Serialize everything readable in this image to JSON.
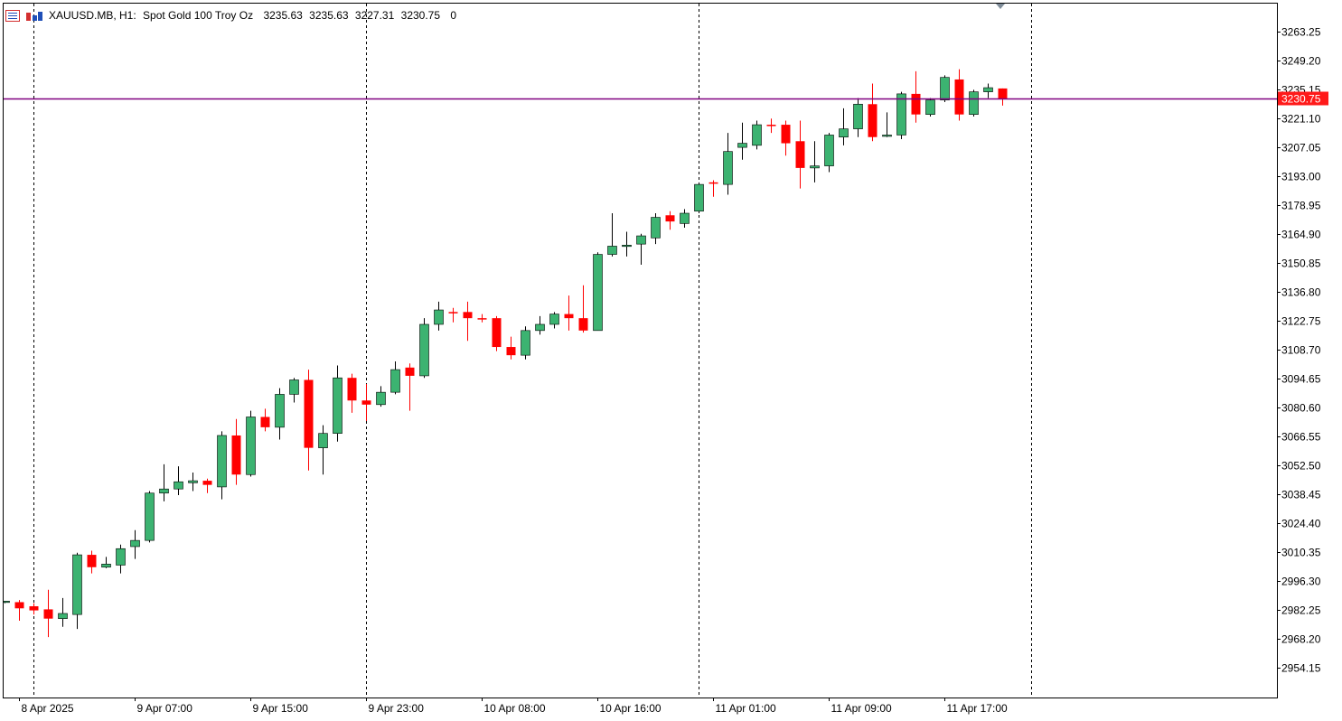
{
  "header": {
    "symbol": "XAUUSD.MB, H1:",
    "description": "Spot Gold 100 Troy Oz",
    "open": "3235.63",
    "high": "3235.63",
    "low": "3227.31",
    "close": "3230.75",
    "volume": "0"
  },
  "icons": [
    "menu-icon",
    "chart-type-icon"
  ],
  "colors": {
    "bull": "#3cb371",
    "bear": "#ff0000",
    "price_line": "#800080",
    "price_label_bg": "#ff1a1a",
    "axis": "#000000",
    "separator": "#000000"
  },
  "chart_data": {
    "type": "candlestick",
    "timeframe": "H1",
    "current_price": 3230.75,
    "current_price_label": "3230.75",
    "ylim": [
      2944,
      3280
    ],
    "y_ticks": [
      "3263.25",
      "3249.20",
      "3235.15",
      "3221.10",
      "3207.05",
      "3193.00",
      "3178.95",
      "3164.90",
      "3150.85",
      "3136.80",
      "3122.75",
      "3108.70",
      "3094.65",
      "3080.60",
      "3066.55",
      "3052.50",
      "3038.45",
      "3024.40",
      "3010.35",
      "2996.30",
      "2982.25",
      "2968.20",
      "2954.15"
    ],
    "x_labels": [
      {
        "label": "8 Apr 2025",
        "bar": 1
      },
      {
        "label": "9 Apr 07:00",
        "bar": 9
      },
      {
        "label": "9 Apr 15:00",
        "bar": 17
      },
      {
        "label": "9 Apr 23:00",
        "bar": 25
      },
      {
        "label": "10 Apr 08:00",
        "bar": 33
      },
      {
        "label": "10 Apr 16:00",
        "bar": 41
      },
      {
        "label": "11 Apr 01:00",
        "bar": 49
      },
      {
        "label": "11 Apr 09:00",
        "bar": 57
      },
      {
        "label": "11 Apr 17:00",
        "bar": 65
      }
    ],
    "day_separators": [
      2,
      25,
      48,
      71
    ],
    "candles": [
      {
        "o": 2986.2,
        "h": 2986.5,
        "l": 2985.5,
        "c": 2986.5
      },
      {
        "o": 2986.0,
        "h": 2987.0,
        "l": 2977.0,
        "c": 2983.0
      },
      {
        "o": 2984.0,
        "h": 2985.5,
        "l": 2980.0,
        "c": 2982.0
      },
      {
        "o": 2982.5,
        "h": 2992.0,
        "l": 2969.0,
        "c": 2978.0
      },
      {
        "o": 2978.0,
        "h": 2988.0,
        "l": 2974.0,
        "c": 2980.5
      },
      {
        "o": 2980.0,
        "h": 3010.0,
        "l": 2973.0,
        "c": 3009.0
      },
      {
        "o": 3009.0,
        "h": 3011.0,
        "l": 3000.0,
        "c": 3003.0
      },
      {
        "o": 3003.0,
        "h": 3008.0,
        "l": 3002.5,
        "c": 3004.5
      },
      {
        "o": 3004.0,
        "h": 3014.0,
        "l": 3000.0,
        "c": 3012.0
      },
      {
        "o": 3013.0,
        "h": 3021.0,
        "l": 3007.0,
        "c": 3016.0
      },
      {
        "o": 3016.0,
        "h": 3040.0,
        "l": 3015.0,
        "c": 3039.0
      },
      {
        "o": 3039.0,
        "h": 3053.0,
        "l": 3035.0,
        "c": 3041.0
      },
      {
        "o": 3041.0,
        "h": 3052.0,
        "l": 3038.0,
        "c": 3044.5
      },
      {
        "o": 3044.0,
        "h": 3049.0,
        "l": 3040.0,
        "c": 3045.0
      },
      {
        "o": 3045.0,
        "h": 3046.0,
        "l": 3039.0,
        "c": 3043.0
      },
      {
        "o": 3042.0,
        "h": 3069.0,
        "l": 3036.0,
        "c": 3067.0
      },
      {
        "o": 3067.0,
        "h": 3075.0,
        "l": 3043.0,
        "c": 3048.0
      },
      {
        "o": 3048.0,
        "h": 3079.0,
        "l": 3047.0,
        "c": 3076.0
      },
      {
        "o": 3076.0,
        "h": 3080.0,
        "l": 3069.0,
        "c": 3071.0
      },
      {
        "o": 3071.0,
        "h": 3090.0,
        "l": 3065.0,
        "c": 3087.0
      },
      {
        "o": 3087.0,
        "h": 3095.0,
        "l": 3083.0,
        "c": 3094.0
      },
      {
        "o": 3094.0,
        "h": 3099.0,
        "l": 3050.0,
        "c": 3061.0
      },
      {
        "o": 3061.0,
        "h": 3072.0,
        "l": 3048.0,
        "c": 3068.0
      },
      {
        "o": 3068.0,
        "h": 3101.0,
        "l": 3064.0,
        "c": 3095.0
      },
      {
        "o": 3095.0,
        "h": 3097.0,
        "l": 3078.0,
        "c": 3084.0
      },
      {
        "o": 3084.0,
        "h": 3092.0,
        "l": 3074.0,
        "c": 3082.0
      },
      {
        "o": 3082.0,
        "h": 3091.0,
        "l": 3081.0,
        "c": 3088.0
      },
      {
        "o": 3088.0,
        "h": 3103.0,
        "l": 3087.0,
        "c": 3099.0
      },
      {
        "o": 3100.0,
        "h": 3102.0,
        "l": 3079.0,
        "c": 3096.0
      },
      {
        "o": 3096.0,
        "h": 3124.0,
        "l": 3095.0,
        "c": 3121.0
      },
      {
        "o": 3121.0,
        "h": 3132.0,
        "l": 3118.0,
        "c": 3128.0
      },
      {
        "o": 3127.0,
        "h": 3129.0,
        "l": 3122.0,
        "c": 3126.5
      },
      {
        "o": 3127.0,
        "h": 3132.0,
        "l": 3113.0,
        "c": 3124.0
      },
      {
        "o": 3124.0,
        "h": 3126.0,
        "l": 3122.0,
        "c": 3123.5
      },
      {
        "o": 3124.0,
        "h": 3125.0,
        "l": 3108.0,
        "c": 3110.0
      },
      {
        "o": 3110.0,
        "h": 3115.0,
        "l": 3104.0,
        "c": 3106.0
      },
      {
        "o": 3106.0,
        "h": 3120.0,
        "l": 3104.0,
        "c": 3118.0
      },
      {
        "o": 3118.0,
        "h": 3125.0,
        "l": 3116.0,
        "c": 3121.0
      },
      {
        "o": 3121.0,
        "h": 3127.0,
        "l": 3119.0,
        "c": 3126.0
      },
      {
        "o": 3126.0,
        "h": 3135.0,
        "l": 3118.0,
        "c": 3124.0
      },
      {
        "o": 3124.0,
        "h": 3140.0,
        "l": 3117.0,
        "c": 3118.0
      },
      {
        "o": 3118.0,
        "h": 3156.0,
        "l": 3118.0,
        "c": 3155.0
      },
      {
        "o": 3155.0,
        "h": 3175.0,
        "l": 3154.0,
        "c": 3159.0
      },
      {
        "o": 3159.0,
        "h": 3166.0,
        "l": 3154.0,
        "c": 3159.5
      },
      {
        "o": 3160.0,
        "h": 3165.0,
        "l": 3150.0,
        "c": 3164.0
      },
      {
        "o": 3163.0,
        "h": 3175.0,
        "l": 3160.0,
        "c": 3173.0
      },
      {
        "o": 3174.0,
        "h": 3176.0,
        "l": 3167.0,
        "c": 3171.0
      },
      {
        "o": 3170.0,
        "h": 3177.0,
        "l": 3168.0,
        "c": 3175.0
      },
      {
        "o": 3176.0,
        "h": 3190.0,
        "l": 3175.0,
        "c": 3189.0
      },
      {
        "o": 3190.0,
        "h": 3191.0,
        "l": 3183.0,
        "c": 3189.5
      },
      {
        "o": 3189.0,
        "h": 3214.0,
        "l": 3184.0,
        "c": 3205.0
      },
      {
        "o": 3207.0,
        "h": 3219.0,
        "l": 3201.0,
        "c": 3209.0
      },
      {
        "o": 3208.0,
        "h": 3220.0,
        "l": 3206.0,
        "c": 3218.0
      },
      {
        "o": 3218.0,
        "h": 3221.0,
        "l": 3214.0,
        "c": 3217.5
      },
      {
        "o": 3218.0,
        "h": 3220.0,
        "l": 3203.0,
        "c": 3209.0
      },
      {
        "o": 3210.0,
        "h": 3220.0,
        "l": 3187.0,
        "c": 3197.0
      },
      {
        "o": 3197.0,
        "h": 3210.0,
        "l": 3190.0,
        "c": 3198.0
      },
      {
        "o": 3198.0,
        "h": 3214.0,
        "l": 3195.0,
        "c": 3213.0
      },
      {
        "o": 3212.0,
        "h": 3226.0,
        "l": 3208.0,
        "c": 3216.0
      },
      {
        "o": 3216.0,
        "h": 3231.0,
        "l": 3212.0,
        "c": 3228.0
      },
      {
        "o": 3228.0,
        "h": 3238.0,
        "l": 3210.0,
        "c": 3212.0
      },
      {
        "o": 3213.0,
        "h": 3224.0,
        "l": 3212.0,
        "c": 3213.0
      },
      {
        "o": 3213.0,
        "h": 3234.0,
        "l": 3211.0,
        "c": 3233.0
      },
      {
        "o": 3233.0,
        "h": 3244.0,
        "l": 3219.0,
        "c": 3223.0
      },
      {
        "o": 3223.0,
        "h": 3231.0,
        "l": 3222.0,
        "c": 3230.0
      },
      {
        "o": 3230.0,
        "h": 3242.0,
        "l": 3229.0,
        "c": 3241.0
      },
      {
        "o": 3240.0,
        "h": 3245.0,
        "l": 3220.0,
        "c": 3223.0
      },
      {
        "o": 3223.0,
        "h": 3235.0,
        "l": 3222.0,
        "c": 3234.0
      },
      {
        "o": 3234.0,
        "h": 3238.0,
        "l": 3231.0,
        "c": 3236.0
      },
      {
        "o": 3235.63,
        "h": 3235.63,
        "l": 3227.31,
        "c": 3230.75
      }
    ]
  }
}
